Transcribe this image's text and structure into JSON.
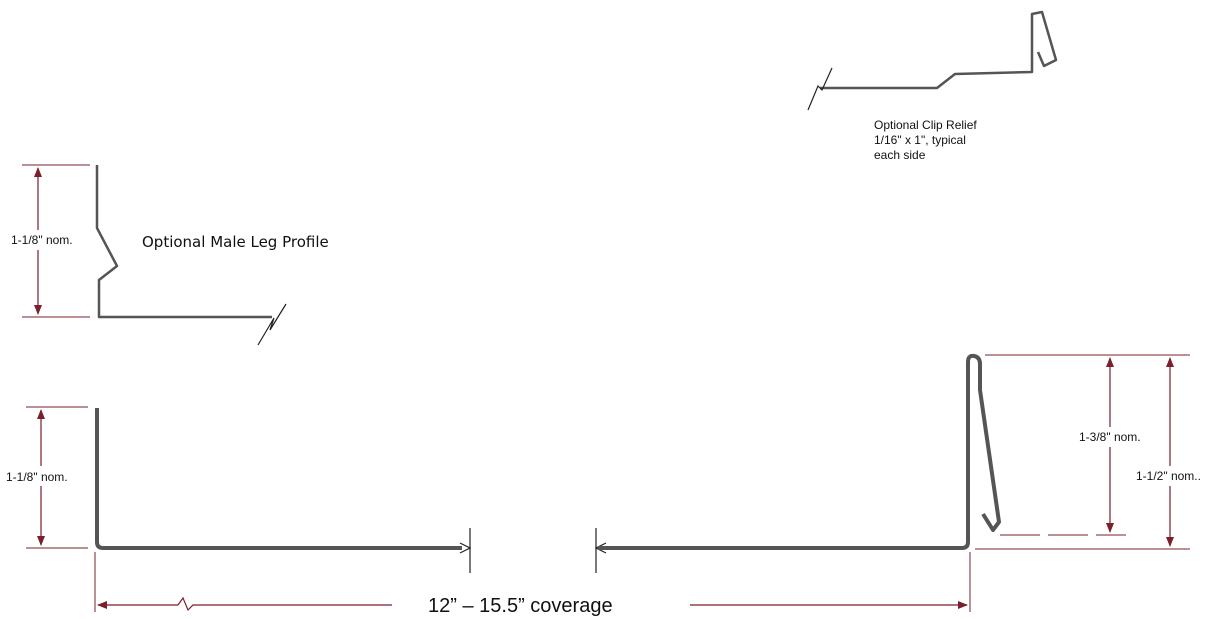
{
  "labels": {
    "clip_relief_line1": "Optional Clip Relief",
    "clip_relief_line2": "1/16\" x 1\", typical",
    "clip_relief_line3": "each side",
    "male_leg_profile": "Optional Male Leg Profile",
    "dim_male_leg_height": "1-1/8\" nom.",
    "dim_male_leg_height_main": "1-1/8\" nom.",
    "dim_female_inner": "1-3/8\" nom.",
    "dim_female_outer": "1-1/2\" nom..",
    "coverage": "12” – 15.5” coverage"
  },
  "colors": {
    "profile": "#555555",
    "dimension": "#7a1f2b",
    "text": "#111111",
    "background": "#ffffff"
  }
}
